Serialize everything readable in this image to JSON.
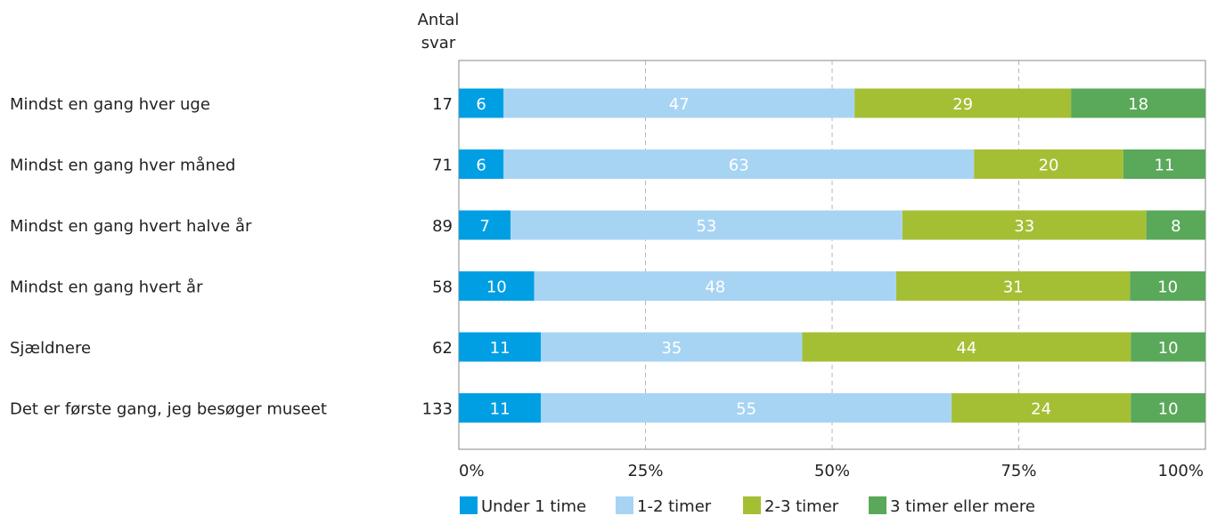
{
  "chart_data": {
    "type": "bar",
    "orientation": "horizontal",
    "stacked": "percent",
    "count_header": [
      "Antal",
      "svar"
    ],
    "categories": [
      "Mindst en gang hver uge",
      "Mindst en gang hver måned",
      "Mindst en gang hvert halve år",
      "Mindst en gang hvert år",
      "Sjældnere",
      "Det er første gang, jeg besøger museet"
    ],
    "counts": [
      17,
      71,
      89,
      58,
      62,
      133
    ],
    "series": [
      {
        "name": "Under 1 time",
        "color": "#009fe3",
        "values": [
          6,
          6,
          7,
          10,
          11,
          11
        ]
      },
      {
        "name": "1-2 timer",
        "color": "#a8d4f4",
        "values": [
          47,
          63,
          53,
          48,
          35,
          55
        ]
      },
      {
        "name": "2-3 timer",
        "color": "#a5bf35",
        "values": [
          29,
          20,
          33,
          31,
          44,
          24
        ]
      },
      {
        "name": "3 timer eller mere",
        "color": "#5aa85a",
        "values": [
          18,
          11,
          8,
          10,
          10,
          10
        ]
      }
    ],
    "xlim": [
      0,
      100
    ],
    "x_ticks": [
      "0%",
      "25%",
      "50%",
      "75%",
      "100%"
    ],
    "grid": "vertical-dashed",
    "legend_position": "bottom"
  }
}
